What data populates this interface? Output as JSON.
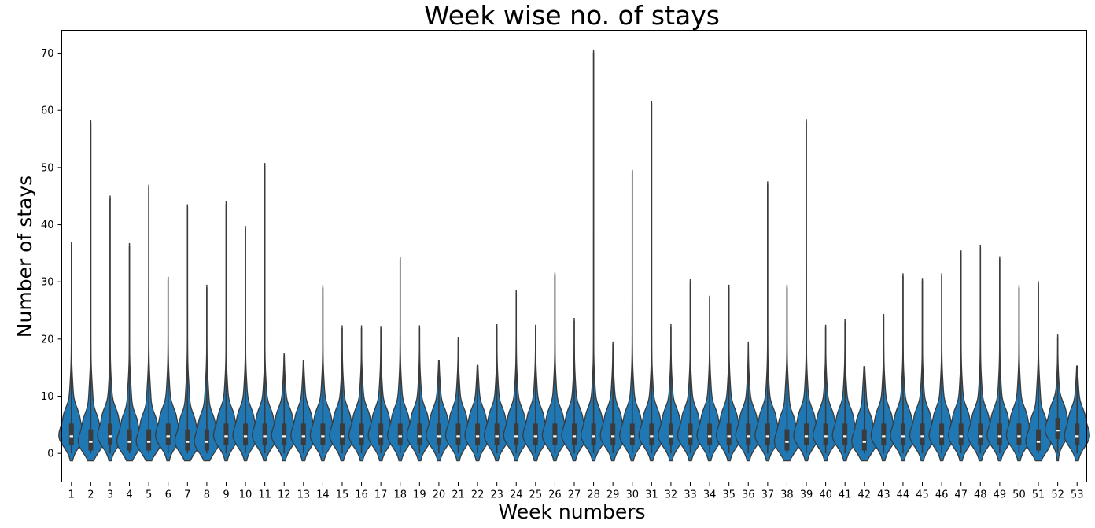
{
  "chart_data": {
    "type": "violin",
    "title": "Week wise  no. of stays",
    "xlabel": "Week numbers",
    "ylabel": "Number of stays",
    "ylim": [
      -5,
      74
    ],
    "yticks": [
      0,
      10,
      20,
      30,
      40,
      50,
      60,
      70
    ],
    "grid": false,
    "colors": {
      "violin_fill": "#1f77b4",
      "violin_edge": "#3b3b3b",
      "inner_box": "#3b3b3b",
      "median": "#ffffff"
    },
    "categories": [
      "1",
      "2",
      "3",
      "4",
      "5",
      "6",
      "7",
      "8",
      "9",
      "10",
      "11",
      "12",
      "13",
      "14",
      "15",
      "16",
      "17",
      "18",
      "19",
      "20",
      "21",
      "22",
      "23",
      "24",
      "25",
      "26",
      "27",
      "28",
      "29",
      "30",
      "31",
      "32",
      "33",
      "34",
      "35",
      "36",
      "37",
      "38",
      "39",
      "40",
      "41",
      "42",
      "43",
      "44",
      "45",
      "46",
      "47",
      "48",
      "49",
      "50",
      "51",
      "52",
      "53"
    ],
    "max": [
      36.5,
      57.8,
      44.6,
      36.3,
      46.5,
      30.4,
      43.1,
      29.0,
      43.6,
      39.3,
      50.3,
      17.0,
      15.8,
      28.9,
      21.9,
      21.9,
      21.8,
      33.9,
      21.9,
      15.9,
      19.9,
      15.0,
      22.1,
      28.1,
      22.0,
      31.1,
      23.2,
      70.1,
      19.1,
      49.1,
      61.2,
      22.1,
      30.0,
      27.1,
      29.0,
      19.1,
      47.1,
      29.0,
      58.0,
      22.0,
      23.0,
      14.8,
      23.9,
      31.0,
      30.2,
      31.0,
      35.0,
      36.0,
      34.0,
      28.9,
      29.6,
      20.3,
      14.9
    ],
    "median": [
      3,
      2,
      3,
      2,
      2,
      3,
      2,
      2,
      3,
      3,
      3,
      3,
      3,
      3,
      3,
      3,
      3,
      3,
      3,
      3,
      3,
      3,
      3,
      3,
      3,
      3,
      3,
      3,
      3,
      3,
      3,
      3,
      3,
      3,
      3,
      3,
      3,
      2,
      3,
      3,
      3,
      2,
      3,
      3,
      3,
      3,
      3,
      3,
      3,
      3,
      2,
      4,
      3
    ]
  }
}
